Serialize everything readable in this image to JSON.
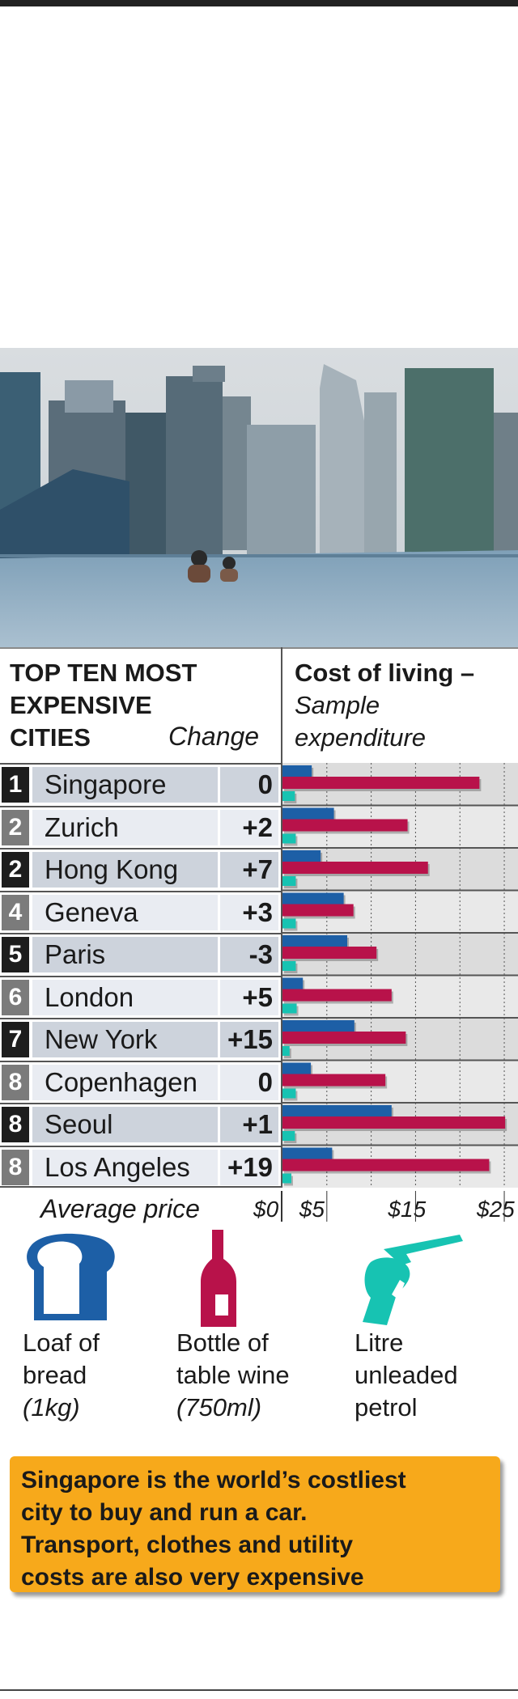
{
  "header": {
    "left_title": [
      "TOP TEN MOST",
      "EXPENSIVE",
      "CITIES"
    ],
    "change_label": "Change",
    "right_title_bold": "Cost of living –",
    "right_title_italic": [
      "Sample",
      "expenditure"
    ]
  },
  "colors": {
    "bread": "#1d5fa6",
    "wine": "#b8124a",
    "petrol": "#17c3b2",
    "callout": "#f7a91b"
  },
  "chart_data": {
    "type": "bar",
    "orientation": "horizontal",
    "categories": [
      "Singapore",
      "Zurich",
      "Hong Kong",
      "Geneva",
      "Paris",
      "London",
      "New York",
      "Copenhagen",
      "Seoul",
      "Los Angeles"
    ],
    "ranks": [
      "1",
      "2",
      "2",
      "4",
      "5",
      "6",
      "7",
      "8",
      "8",
      "8"
    ],
    "changes": [
      "0",
      "+2",
      "+7",
      "+3",
      "-3",
      "+5",
      "+15",
      "0",
      "+1",
      "+19"
    ],
    "series": [
      {
        "name": "Loaf of bread (1kg)",
        "values": [
          3.3,
          5.8,
          4.3,
          6.9,
          7.3,
          2.3,
          8.1,
          3.2,
          12.3,
          5.6
        ]
      },
      {
        "name": "Bottle of table wine (750ml)",
        "values": [
          22.2,
          14.1,
          16.4,
          8.0,
          10.6,
          12.3,
          13.9,
          11.6,
          25.1,
          23.3
        ]
      },
      {
        "name": "Litre unleaded petrol",
        "values": [
          1.4,
          1.5,
          1.5,
          1.5,
          1.5,
          1.6,
          0.8,
          1.5,
          1.4,
          1.0
        ]
      }
    ],
    "xlim": [
      0,
      25
    ],
    "tick_labels": [
      "$0",
      "$5",
      "$15",
      "$25"
    ],
    "ticks": [
      0,
      5,
      15,
      25
    ],
    "xlabel": "Average price",
    "grid": true
  },
  "legend": {
    "bread": [
      "Loaf of",
      "bread",
      "(1kg)"
    ],
    "wine": [
      "Bottle of",
      "table wine",
      "(750ml)"
    ],
    "petrol": [
      "Litre",
      "unleaded",
      "petrol"
    ]
  },
  "callout": {
    "lines": [
      "Singapore is the world’s costliest",
      "city to buy and run a car.",
      "Transport, clothes and utility",
      "costs are also very expensive"
    ]
  }
}
